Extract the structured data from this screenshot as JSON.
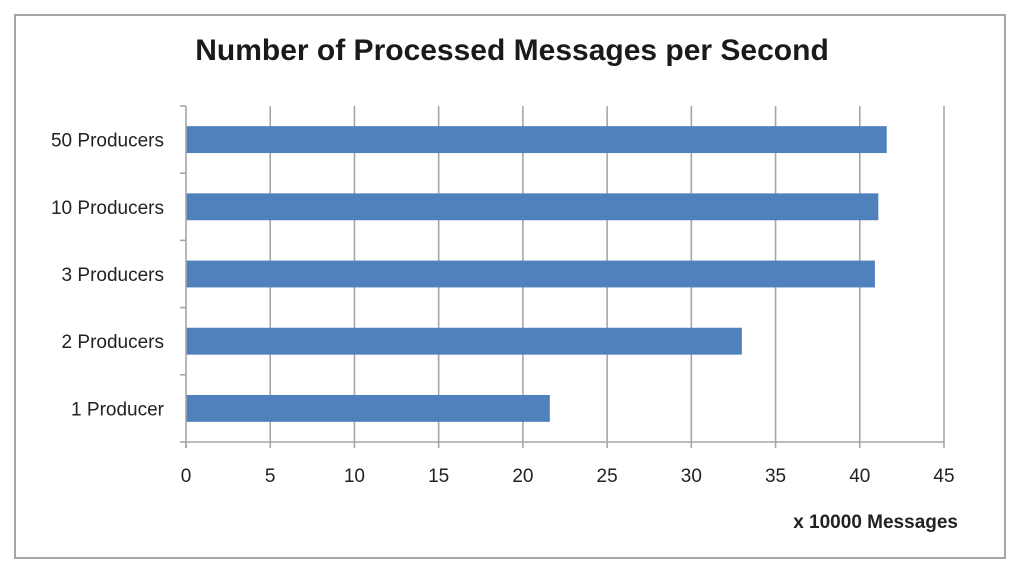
{
  "chart_data": {
    "type": "bar",
    "orientation": "horizontal",
    "title": "Number of Processed Messages per Second",
    "xlabel": "x 10000 Messages",
    "ylabel": "",
    "categories": [
      "50 Producers",
      "10 Producers",
      "3 Producers",
      "2 Producers",
      "1 Producer"
    ],
    "values": [
      41.6,
      41.1,
      40.9,
      33.0,
      21.6
    ],
    "xlim": [
      0,
      45
    ],
    "xticks": [
      0,
      5,
      10,
      15,
      20,
      25,
      30,
      35,
      40,
      45
    ],
    "grid": true,
    "legend": "none",
    "bar_color": "#4f81bd",
    "grid_color": "#a6a6a6"
  }
}
